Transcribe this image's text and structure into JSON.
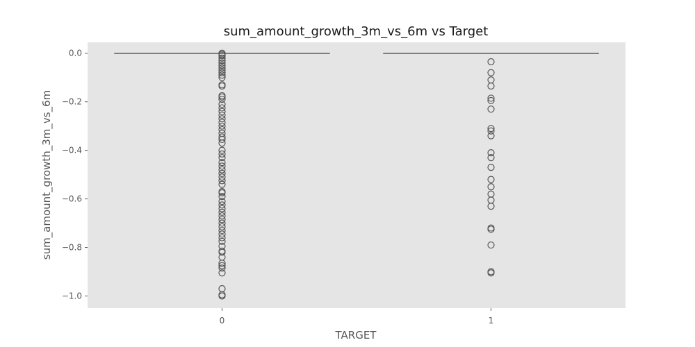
{
  "chart_data": {
    "type": "box",
    "title": "sum_amount_growth_3m_vs_6m vs Target",
    "xlabel": "TARGET",
    "ylabel": "sum_amount_growth_3m_vs_6m",
    "categories": [
      "0",
      "1"
    ],
    "ylim": [
      -1.05,
      0.045
    ],
    "yticks": [
      0.0,
      -0.2,
      -0.4,
      -0.6,
      -0.8,
      -1.0
    ],
    "ytick_labels": [
      "0.0",
      "−0.2",
      "−0.4",
      "−0.6",
      "−0.8",
      "−1.0"
    ],
    "grid": false,
    "background": "#e5e5e5",
    "box_color": "#555555",
    "boxes": [
      {
        "category": "0",
        "q1": 0.0,
        "median": 0.0,
        "q3": 0.0,
        "whisker_low": 0.0,
        "whisker_high": 0.0,
        "outliers": [
          0.0,
          -0.005,
          -0.01,
          -0.02,
          -0.03,
          -0.04,
          -0.05,
          -0.06,
          -0.07,
          -0.08,
          -0.09,
          -0.1,
          -0.13,
          -0.135,
          -0.175,
          -0.18,
          -0.19,
          -0.21,
          -0.225,
          -0.24,
          -0.255,
          -0.27,
          -0.285,
          -0.3,
          -0.315,
          -0.33,
          -0.345,
          -0.355,
          -0.37,
          -0.4,
          -0.415,
          -0.43,
          -0.45,
          -0.465,
          -0.48,
          -0.495,
          -0.51,
          -0.525,
          -0.54,
          -0.57,
          -0.575,
          -0.59,
          -0.61,
          -0.625,
          -0.64,
          -0.655,
          -0.67,
          -0.685,
          -0.7,
          -0.715,
          -0.73,
          -0.745,
          -0.76,
          -0.775,
          -0.795,
          -0.815,
          -0.82,
          -0.84,
          -0.865,
          -0.875,
          -0.885,
          -0.905,
          -0.97,
          -0.995,
          -1.0
        ]
      },
      {
        "category": "1",
        "q1": 0.0,
        "median": 0.0,
        "q3": 0.0,
        "whisker_low": 0.0,
        "whisker_high": 0.0,
        "outliers": [
          -0.035,
          -0.08,
          -0.11,
          -0.135,
          -0.185,
          -0.195,
          -0.23,
          -0.31,
          -0.32,
          -0.34,
          -0.41,
          -0.43,
          -0.47,
          -0.52,
          -0.55,
          -0.58,
          -0.605,
          -0.63,
          -0.72,
          -0.725,
          -0.79,
          -0.9,
          -0.905
        ]
      }
    ]
  }
}
